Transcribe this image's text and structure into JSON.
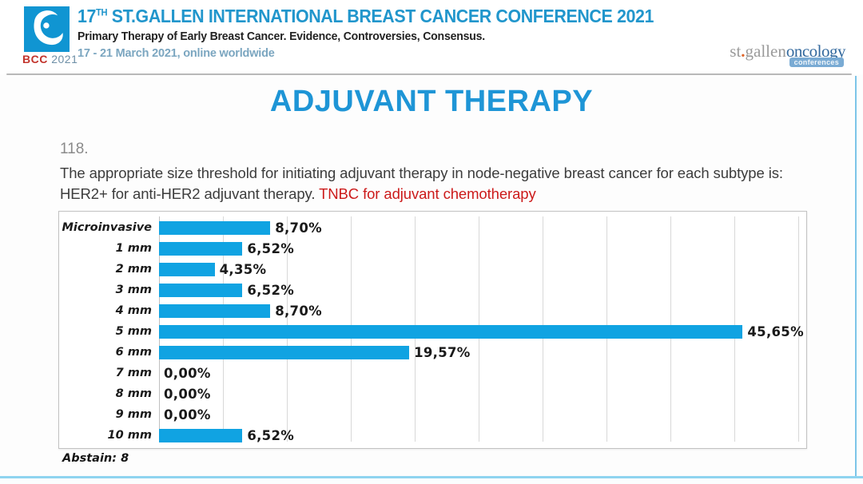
{
  "header": {
    "logo_caption_bcc": "BCC",
    "logo_caption_year": "2021",
    "title_prefix": "17",
    "title_sup": "TH",
    "title_rest": " ST.GALLEN INTERNATIONAL BREAST CANCER CONFERENCE 2021",
    "subtitle": "Primary Therapy of Early Breast Cancer. Evidence, Controversies, Consensus.",
    "date": "17 - 21 March 2021, online worldwide",
    "right_logo_st": "st",
    "right_logo_dot": ".",
    "right_logo_gallen": "gallen",
    "right_logo_oncology": "oncology",
    "right_logo_badge": "conferences"
  },
  "slide": {
    "title": "ADJUVANT THERAPY",
    "question_number": "118.",
    "question_main": "The appropriate size threshold for initiating adjuvant therapy in node-negative breast cancer for each subtype is: HER2+ for anti-HER2 adjuvant therapy. ",
    "question_highlight": "TNBC for adjuvant chemotherapy",
    "abstain": "Abstain: 8"
  },
  "chart_data": {
    "type": "bar",
    "orientation": "horizontal",
    "title": "",
    "categories": [
      "Microinvasive",
      "1 mm",
      "2 mm",
      "3 mm",
      "4 mm",
      "5 mm",
      "6 mm",
      "7 mm",
      "8 mm",
      "9 mm",
      "10 mm"
    ],
    "values": [
      8.7,
      6.52,
      4.35,
      6.52,
      8.7,
      45.65,
      19.57,
      0.0,
      0.0,
      0.0,
      6.52
    ],
    "value_labels": [
      "8,70%",
      "6,52%",
      "4,35%",
      "6,52%",
      "8,70%",
      "45,65%",
      "19,57%",
      "0,00%",
      "0,00%",
      "0,00%",
      "6,52%"
    ],
    "xlim": [
      0,
      50
    ],
    "gridline_step": 5,
    "grid": true,
    "legend": false,
    "bar_color": "#10a3e2",
    "annotation": "Abstain: 8"
  },
  "colors": {
    "accent_blue": "#1e95d6",
    "header_blue": "#2196cc",
    "bar_blue": "#10a3e2",
    "highlight_red": "#cc1a1a",
    "logo_blue": "#1095d2",
    "frame_blue": "#8fd4f0"
  }
}
